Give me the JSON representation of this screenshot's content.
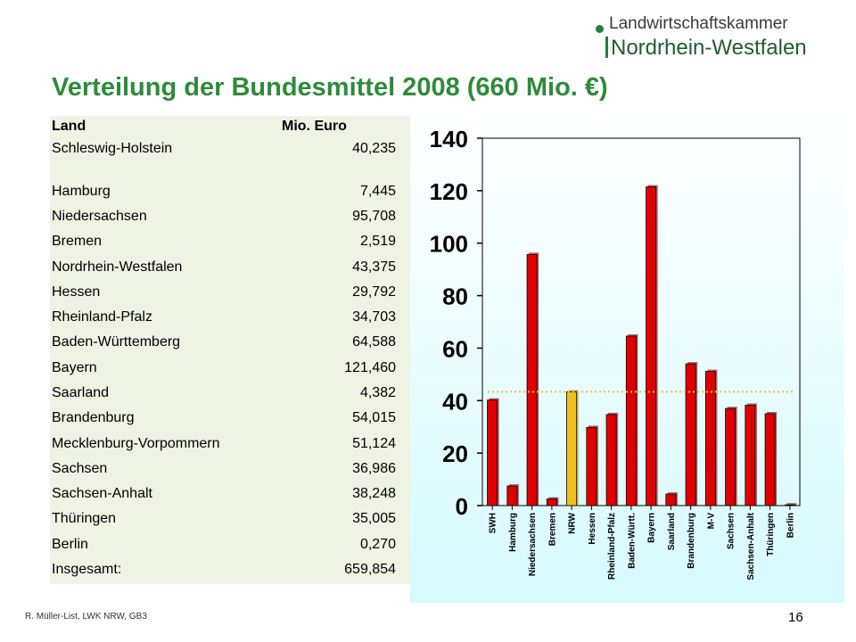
{
  "header": {
    "logo_line1": "Landwirtschaftskammer",
    "logo_line2": "Nordrhein-Westfalen",
    "title": "Verteilung der Bundesmittel  2008 (660 Mio. €)"
  },
  "table": {
    "col_land": "Land",
    "col_value": "Mio. Euro",
    "rows": [
      {
        "name": "Schleswig-Holstein",
        "value": "40,235"
      },
      {
        "name": "Hamburg",
        "value": "7,445"
      },
      {
        "name": "Niedersachsen",
        "value": "95,708"
      },
      {
        "name": "Bremen",
        "value": "2,519"
      },
      {
        "name": "Nordrhein-Westfalen",
        "value": "43,375"
      },
      {
        "name": "Hessen",
        "value": "29,792"
      },
      {
        "name": "Rheinland-Pfalz",
        "value": "34,703"
      },
      {
        "name": "Baden-Württemberg",
        "value": "64,588"
      },
      {
        "name": "Bayern",
        "value": "121,460"
      },
      {
        "name": "Saarland",
        "value": "4,382"
      },
      {
        "name": "Brandenburg",
        "value": "54,015"
      },
      {
        "name": "Mecklenburg-Vorpommern",
        "value": "51,124"
      },
      {
        "name": "Sachsen",
        "value": "36,986"
      },
      {
        "name": "Sachsen-Anhalt",
        "value": "38,248"
      },
      {
        "name": "Thüringen",
        "value": "35,005"
      },
      {
        "name": "Berlin",
        "value": "0,270"
      },
      {
        "name": "Insgesamt:",
        "value": "659,854"
      }
    ]
  },
  "chart_data": {
    "type": "bar",
    "categories": [
      "SWH",
      "Hamburg",
      "Niedersachsen",
      "Bremen",
      "NRW",
      "Hessen",
      "Rheinland-Pfalz",
      "Baden-Württ.",
      "Bayern",
      "Saarland",
      "Brandenburg",
      "M-V",
      "Sachsen",
      "Sachsen-Anhalt",
      "Thüringen",
      "Berlin"
    ],
    "values": [
      40.235,
      7.445,
      95.708,
      2.519,
      43.375,
      29.792,
      34.703,
      64.588,
      121.46,
      4.382,
      54.015,
      51.124,
      36.986,
      38.248,
      35.005,
      0.27
    ],
    "highlight_index": 4,
    "reference_line": 43.375,
    "ylim": [
      0,
      140
    ],
    "yticks": [
      0,
      20,
      40,
      60,
      80,
      100,
      120,
      140
    ],
    "bar_color": "#e00000",
    "highlight_color": "#f0c020",
    "reference_line_color": "#e8c040",
    "background_color": "#d6fafe",
    "grid": false,
    "legend": "none"
  },
  "footer": {
    "author": "R. Müller-List, LWK NRW, GB3",
    "page": "16"
  }
}
